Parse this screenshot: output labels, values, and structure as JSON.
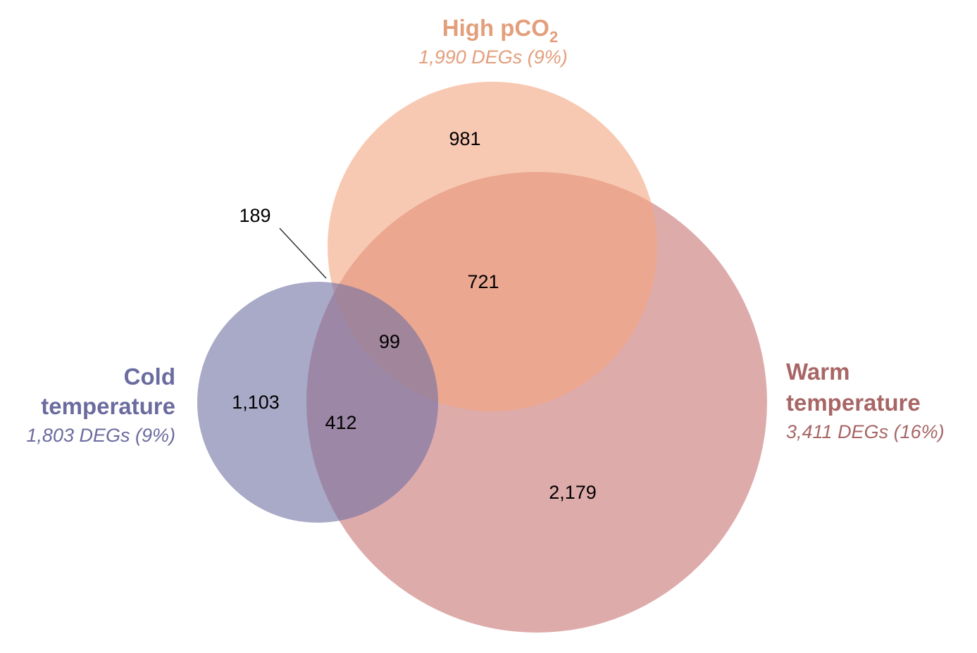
{
  "sets": {
    "high_pco2": {
      "name_main": "High pCO",
      "name_sub": "2",
      "count": "1,990 DEGs (9%)",
      "color": "#f4a57f",
      "label_color": "#e39e7b"
    },
    "cold": {
      "name_line1": "Cold",
      "name_line2": "temperature",
      "count": "1,803 DEGs (9%)",
      "color": "#6f6fa3",
      "label_color": "#6b6b9f"
    },
    "warm": {
      "name_line1": "Warm",
      "name_line2": "temperature",
      "count": "3,411 DEGs (16%)",
      "color": "#c97777",
      "label_color": "#a86666"
    }
  },
  "regions": {
    "pco2_only": "981",
    "pco2_warm": "721",
    "cold_pco2": "189",
    "all_three": "99",
    "cold_only": "1,103",
    "cold_warm": "412",
    "warm_only": "2,179"
  }
}
